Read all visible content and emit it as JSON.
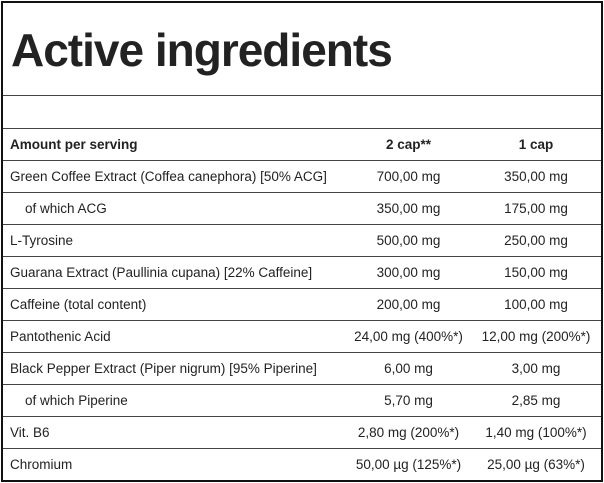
{
  "header": {
    "title": "Active ingredients"
  },
  "table": {
    "columns": [
      "Amount per serving",
      "2 cap**",
      "1 cap"
    ],
    "rows": [
      [
        "Green Coffee Extract (Coffea canephora) [50% ACG]",
        "700,00 mg",
        "350,00 mg"
      ],
      [
        "of which ACG",
        "350,00 mg",
        "175,00 mg"
      ],
      [
        "L-Tyrosine",
        "500,00 mg",
        "250,00 mg"
      ],
      [
        "Guarana Extract (Paullinia cupana) [22% Caffeine]",
        "300,00 mg",
        "150,00 mg"
      ],
      [
        "Caffeine (total content)",
        "200,00 mg",
        "100,00 mg"
      ],
      [
        "Pantothenic Acid",
        "24,00 mg (400%*)",
        "12,00 mg (200%*)"
      ],
      [
        "Black Pepper Extract (Piper nigrum) [95% Piperine]",
        "6,00 mg",
        "3,00 mg"
      ],
      [
        "of which Piperine",
        "5,70 mg",
        "2,85 mg"
      ],
      [
        "Vit. B6",
        "2,80 mg (200%*)",
        "1,40 mg (100%*)"
      ],
      [
        "Chromium",
        "50,00 µg (125%*)",
        "25,00 µg (63%*)"
      ]
    ]
  }
}
